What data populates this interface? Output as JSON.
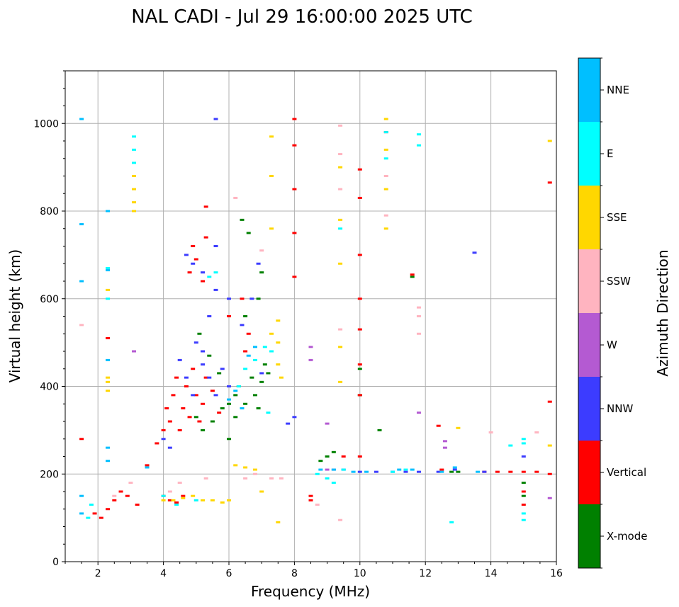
{
  "chart_data": {
    "type": "scatter",
    "title": "NAL CADI - Jul 29 16:00:00 2025 UTC",
    "xlabel": "Frequency (MHz)",
    "ylabel": "Virtual height (km)",
    "xlim": [
      1,
      16
    ],
    "ylim": [
      0,
      1120
    ],
    "xticks": [
      2,
      4,
      6,
      8,
      10,
      12,
      14,
      16
    ],
    "yticks": [
      0,
      200,
      400,
      600,
      800,
      1000
    ],
    "grid": true,
    "colorbar": {
      "label": "Azimuth Direction",
      "categories": [
        {
          "name": "X-mode",
          "color": "#008000"
        },
        {
          "name": "Vertical",
          "color": "#ff0000"
        },
        {
          "name": "NNW",
          "color": "#3c3cff"
        },
        {
          "name": "W",
          "color": "#b45ad2"
        },
        {
          "name": "SSW",
          "color": "#ffb4c0"
        },
        {
          "name": "SSE",
          "color": "#ffd700"
        },
        {
          "name": "E",
          "color": "#00ffff"
        },
        {
          "name": "NNE",
          "color": "#00bfff"
        }
      ]
    },
    "series": [
      {
        "name": "X-mode",
        "points": [
          [
            5.0,
            330
          ],
          [
            5.2,
            300
          ],
          [
            5.5,
            320
          ],
          [
            5.8,
            350
          ],
          [
            6.0,
            360
          ],
          [
            6.2,
            380
          ],
          [
            6.3,
            400
          ],
          [
            6.5,
            360
          ],
          [
            6.7,
            420
          ],
          [
            6.8,
            380
          ],
          [
            6.9,
            350
          ],
          [
            7.0,
            410
          ],
          [
            7.1,
            450
          ],
          [
            7.2,
            430
          ],
          [
            6.5,
            560
          ],
          [
            6.9,
            600
          ],
          [
            7.0,
            660
          ],
          [
            6.4,
            780
          ],
          [
            6.6,
            750
          ],
          [
            5.1,
            520
          ],
          [
            5.4,
            470
          ],
          [
            5.7,
            430
          ],
          [
            8.8,
            230
          ],
          [
            9.0,
            240
          ],
          [
            9.2,
            250
          ],
          [
            10.0,
            440
          ],
          [
            10.0,
            380
          ],
          [
            10.6,
            300
          ],
          [
            11.6,
            650
          ],
          [
            12.8,
            205
          ],
          [
            13.0,
            205
          ],
          [
            15.0,
            180
          ],
          [
            15.0,
            150
          ],
          [
            6.2,
            330
          ],
          [
            6.0,
            280
          ]
        ]
      },
      {
        "name": "Vertical",
        "points": [
          [
            1.5,
            280
          ],
          [
            1.9,
            110
          ],
          [
            2.1,
            100
          ],
          [
            2.3,
            120
          ],
          [
            2.5,
            140
          ],
          [
            2.7,
            160
          ],
          [
            2.9,
            150
          ],
          [
            3.2,
            130
          ],
          [
            3.5,
            220
          ],
          [
            3.8,
            270
          ],
          [
            4.0,
            300
          ],
          [
            4.1,
            350
          ],
          [
            4.2,
            320
          ],
          [
            4.3,
            380
          ],
          [
            4.4,
            420
          ],
          [
            4.5,
            300
          ],
          [
            4.6,
            350
          ],
          [
            4.7,
            400
          ],
          [
            4.8,
            330
          ],
          [
            4.9,
            440
          ],
          [
            5.0,
            380
          ],
          [
            5.1,
            320
          ],
          [
            5.2,
            360
          ],
          [
            5.3,
            420
          ],
          [
            5.5,
            390
          ],
          [
            5.7,
            340
          ],
          [
            4.0,
            150
          ],
          [
            4.2,
            140
          ],
          [
            4.4,
            135
          ],
          [
            4.6,
            150
          ],
          [
            4.8,
            660
          ],
          [
            5.0,
            690
          ],
          [
            5.2,
            640
          ],
          [
            4.9,
            720
          ],
          [
            5.3,
            740
          ],
          [
            6.6,
            520
          ],
          [
            6.5,
            480
          ],
          [
            6.4,
            600
          ],
          [
            6.0,
            560
          ],
          [
            2.3,
            510
          ],
          [
            5.3,
            810
          ],
          [
            8.0,
            1010
          ],
          [
            8.0,
            950
          ],
          [
            8.0,
            850
          ],
          [
            8.0,
            750
          ],
          [
            8.0,
            650
          ],
          [
            10.0,
            700
          ],
          [
            10.0,
            600
          ],
          [
            10.0,
            450
          ],
          [
            10.0,
            380
          ],
          [
            10.0,
            240
          ],
          [
            10.8,
            980
          ],
          [
            9.5,
            240
          ],
          [
            12.4,
            310
          ],
          [
            12.5,
            210
          ],
          [
            13.8,
            205
          ],
          [
            14.2,
            205
          ],
          [
            14.6,
            205
          ],
          [
            15.0,
            205
          ],
          [
            15.4,
            205
          ],
          [
            15.8,
            200
          ],
          [
            15.0,
            160
          ],
          [
            15.0,
            130
          ],
          [
            15.8,
            365
          ],
          [
            15.8,
            865
          ],
          [
            10.0,
            895
          ],
          [
            10.0,
            830
          ],
          [
            10.0,
            530
          ],
          [
            11.6,
            655
          ],
          [
            8.5,
            140
          ],
          [
            8.5,
            150
          ]
        ]
      },
      {
        "name": "NNW",
        "points": [
          [
            5.6,
            1010
          ],
          [
            4.5,
            460
          ],
          [
            4.7,
            420
          ],
          [
            4.9,
            380
          ],
          [
            5.2,
            450
          ],
          [
            5.4,
            420
          ],
          [
            5.6,
            380
          ],
          [
            5.8,
            440
          ],
          [
            6.0,
            400
          ],
          [
            5.0,
            500
          ],
          [
            5.2,
            480
          ],
          [
            5.4,
            560
          ],
          [
            5.6,
            620
          ],
          [
            4.7,
            700
          ],
          [
            4.9,
            680
          ],
          [
            5.2,
            660
          ],
          [
            5.6,
            720
          ],
          [
            6.0,
            600
          ],
          [
            6.4,
            540
          ],
          [
            6.7,
            600
          ],
          [
            6.9,
            680
          ],
          [
            7.0,
            430
          ],
          [
            4.0,
            280
          ],
          [
            4.2,
            260
          ],
          [
            9.5,
            210
          ],
          [
            10.0,
            205
          ],
          [
            10.5,
            205
          ],
          [
            11.0,
            205
          ],
          [
            11.4,
            205
          ],
          [
            11.8,
            205
          ],
          [
            12.4,
            205
          ],
          [
            12.9,
            210
          ],
          [
            13.8,
            205
          ],
          [
            15.0,
            240
          ],
          [
            13.5,
            705
          ],
          [
            7.8,
            315
          ],
          [
            8.0,
            330
          ]
        ]
      },
      {
        "name": "W",
        "points": [
          [
            3.1,
            480
          ],
          [
            8.5,
            490
          ],
          [
            8.5,
            460
          ],
          [
            9.0,
            210
          ],
          [
            9.2,
            210
          ],
          [
            11.8,
            340
          ],
          [
            12.6,
            275
          ],
          [
            12.6,
            260
          ],
          [
            15.8,
            145
          ],
          [
            9.0,
            315
          ]
        ]
      },
      {
        "name": "SSW",
        "points": [
          [
            1.5,
            540
          ],
          [
            2.5,
            150
          ],
          [
            3.0,
            180
          ],
          [
            4.2,
            160
          ],
          [
            4.5,
            180
          ],
          [
            5.0,
            140
          ],
          [
            5.3,
            190
          ],
          [
            6.2,
            830
          ],
          [
            6.5,
            190
          ],
          [
            6.8,
            200
          ],
          [
            7.0,
            710
          ],
          [
            7.3,
            190
          ],
          [
            7.6,
            190
          ],
          [
            8.7,
            130
          ],
          [
            9.4,
            995
          ],
          [
            9.4,
            930
          ],
          [
            9.4,
            850
          ],
          [
            9.4,
            530
          ],
          [
            9.4,
            95
          ],
          [
            10.8,
            880
          ],
          [
            10.8,
            790
          ],
          [
            14.0,
            295
          ],
          [
            15.4,
            295
          ],
          [
            11.8,
            580
          ],
          [
            11.8,
            560
          ],
          [
            11.8,
            520
          ]
        ]
      },
      {
        "name": "SSE",
        "points": [
          [
            3.1,
            880
          ],
          [
            3.1,
            850
          ],
          [
            3.1,
            820
          ],
          [
            3.1,
            800
          ],
          [
            2.3,
            620
          ],
          [
            2.3,
            410
          ],
          [
            2.3,
            390
          ],
          [
            2.3,
            420
          ],
          [
            4.0,
            140
          ],
          [
            4.3,
            140
          ],
          [
            4.6,
            145
          ],
          [
            4.9,
            150
          ],
          [
            5.2,
            140
          ],
          [
            5.5,
            140
          ],
          [
            5.8,
            135
          ],
          [
            6.0,
            140
          ],
          [
            6.2,
            220
          ],
          [
            6.5,
            215
          ],
          [
            6.8,
            210
          ],
          [
            7.0,
            160
          ],
          [
            7.5,
            550
          ],
          [
            7.5,
            500
          ],
          [
            7.5,
            450
          ],
          [
            7.3,
            520
          ],
          [
            7.6,
            420
          ],
          [
            7.3,
            970
          ],
          [
            7.3,
            880
          ],
          [
            7.3,
            760
          ],
          [
            9.4,
            900
          ],
          [
            9.4,
            780
          ],
          [
            9.4,
            680
          ],
          [
            9.4,
            410
          ],
          [
            9.4,
            490
          ],
          [
            10.8,
            1010
          ],
          [
            10.8,
            940
          ],
          [
            10.8,
            850
          ],
          [
            10.8,
            760
          ],
          [
            13.0,
            305
          ],
          [
            15.8,
            960
          ],
          [
            15.8,
            265
          ],
          [
            7.5,
            90
          ]
        ]
      },
      {
        "name": "E",
        "points": [
          [
            2.3,
            670
          ],
          [
            2.3,
            600
          ],
          [
            3.1,
            970
          ],
          [
            3.1,
            940
          ],
          [
            3.1,
            910
          ],
          [
            1.7,
            100
          ],
          [
            1.8,
            130
          ],
          [
            4.0,
            150
          ],
          [
            4.4,
            130
          ],
          [
            5.0,
            140
          ],
          [
            5.4,
            650
          ],
          [
            5.6,
            660
          ],
          [
            6.3,
            400
          ],
          [
            6.5,
            440
          ],
          [
            6.8,
            460
          ],
          [
            7.1,
            490
          ],
          [
            7.3,
            480
          ],
          [
            8.7,
            200
          ],
          [
            9.0,
            190
          ],
          [
            9.2,
            180
          ],
          [
            9.5,
            210
          ],
          [
            10.8,
            980
          ],
          [
            10.8,
            920
          ],
          [
            11.0,
            205
          ],
          [
            11.4,
            210
          ],
          [
            11.8,
            975
          ],
          [
            11.8,
            950
          ],
          [
            12.8,
            90
          ],
          [
            14.6,
            265
          ],
          [
            15.0,
            280
          ],
          [
            15.0,
            270
          ],
          [
            15.0,
            110
          ],
          [
            15.0,
            95
          ],
          [
            7.2,
            340
          ],
          [
            9.4,
            760
          ]
        ]
      },
      {
        "name": "NNE",
        "points": [
          [
            1.5,
            1010
          ],
          [
            1.5,
            770
          ],
          [
            1.5,
            640
          ],
          [
            1.5,
            150
          ],
          [
            1.5,
            110
          ],
          [
            2.3,
            800
          ],
          [
            2.3,
            665
          ],
          [
            2.3,
            460
          ],
          [
            2.3,
            260
          ],
          [
            2.3,
            230
          ],
          [
            3.5,
            215
          ],
          [
            6.0,
            370
          ],
          [
            6.2,
            390
          ],
          [
            6.4,
            350
          ],
          [
            6.6,
            470
          ],
          [
            6.8,
            490
          ],
          [
            8.8,
            210
          ],
          [
            9.2,
            210
          ],
          [
            9.8,
            205
          ],
          [
            10.2,
            205
          ],
          [
            11.2,
            210
          ],
          [
            11.6,
            210
          ],
          [
            12.5,
            205
          ],
          [
            12.9,
            215
          ],
          [
            13.6,
            205
          ]
        ]
      }
    ]
  }
}
